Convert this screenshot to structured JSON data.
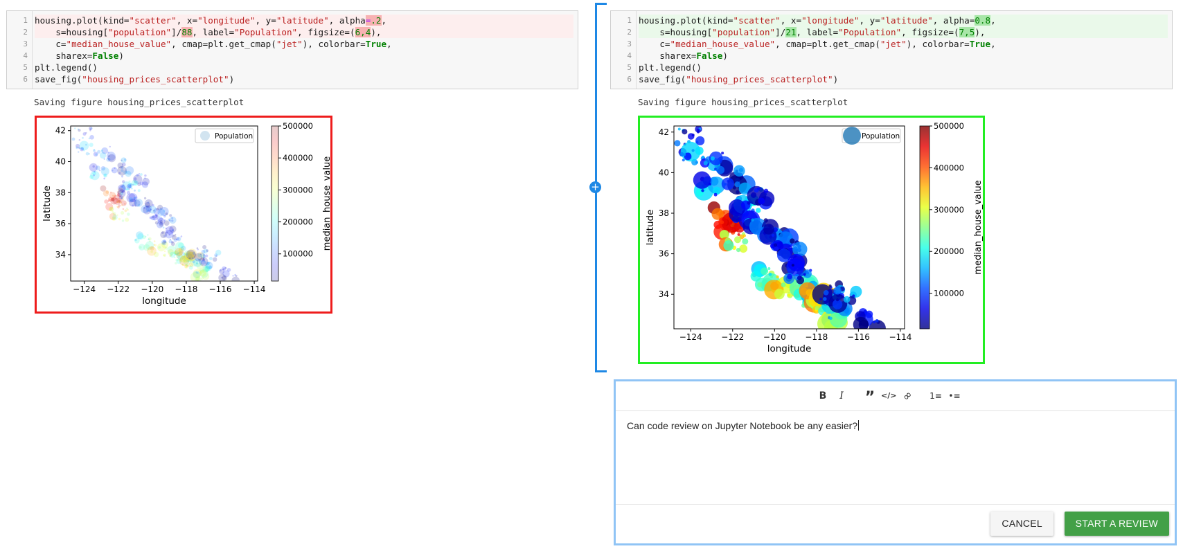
{
  "left_cell": {
    "code_lines": [
      {
        "n": "1",
        "tokens": [
          [
            "",
            "housing.plot(kind="
          ],
          [
            "str",
            "\"scatter\""
          ],
          [
            "",
            ", x="
          ],
          [
            "str",
            "\"longitude\""
          ],
          [
            "",
            ", y="
          ],
          [
            "str",
            "\"latitude\""
          ],
          [
            "",
            ", alpha"
          ],
          [
            "op-del",
            "="
          ],
          [
            "num-del",
            ".2"
          ],
          [
            "",
            ","
          ]
        ]
      },
      {
        "n": "2",
        "tokens": [
          [
            "",
            "    s=housing["
          ],
          [
            "str",
            "\"population\""
          ],
          [
            "",
            "]/"
          ],
          [
            "num-del",
            "88"
          ],
          [
            "",
            ", label="
          ],
          [
            "str",
            "\"Population\""
          ],
          [
            "",
            ", figsize=("
          ],
          [
            "num-del",
            "6,4"
          ],
          [
            "",
            "),"
          ]
        ]
      },
      {
        "n": "3",
        "tokens": [
          [
            "",
            "    c="
          ],
          [
            "str",
            "\"median_house_value\""
          ],
          [
            "",
            ", cmap=plt.get_cmap("
          ],
          [
            "str",
            "\"jet\""
          ],
          [
            "",
            "), colorbar="
          ],
          [
            "kw",
            "True"
          ],
          [
            "",
            ","
          ]
        ]
      },
      {
        "n": "4",
        "tokens": [
          [
            "",
            "    sharex="
          ],
          [
            "kw",
            "False"
          ],
          [
            "",
            ")"
          ]
        ]
      },
      {
        "n": "5",
        "tokens": [
          [
            "",
            "plt.legend()"
          ]
        ]
      },
      {
        "n": "6",
        "tokens": [
          [
            "",
            "save_fig("
          ],
          [
            "str",
            "\"housing_prices_scatterplot\""
          ],
          [
            "",
            ")"
          ]
        ]
      }
    ],
    "output_text": "Saving figure housing_prices_scatterplot"
  },
  "right_cell": {
    "code_lines": [
      {
        "n": "1",
        "tokens": [
          [
            "",
            "housing.plot(kind="
          ],
          [
            "str",
            "\"scatter\""
          ],
          [
            "",
            ", x="
          ],
          [
            "str",
            "\"longitude\""
          ],
          [
            "",
            ", y="
          ],
          [
            "str",
            "\"latitude\""
          ],
          [
            "",
            ", alpha="
          ],
          [
            "num-add",
            "0.8"
          ],
          [
            "",
            ","
          ]
        ]
      },
      {
        "n": "2",
        "tokens": [
          [
            "",
            "    s=housing["
          ],
          [
            "str",
            "\"population\""
          ],
          [
            "",
            "]/"
          ],
          [
            "num-add",
            "21"
          ],
          [
            "",
            ", label="
          ],
          [
            "str",
            "\"Population\""
          ],
          [
            "",
            ", figsize=("
          ],
          [
            "num-add",
            "7,5"
          ],
          [
            "",
            "),"
          ]
        ]
      },
      {
        "n": "3",
        "tokens": [
          [
            "",
            "    c="
          ],
          [
            "str",
            "\"median_house_value\""
          ],
          [
            "",
            ", cmap=plt.get_cmap("
          ],
          [
            "str",
            "\"jet\""
          ],
          [
            "",
            "), colorbar="
          ],
          [
            "kw",
            "True"
          ],
          [
            "",
            ","
          ]
        ]
      },
      {
        "n": "4",
        "tokens": [
          [
            "",
            "    sharex="
          ],
          [
            "kw",
            "False"
          ],
          [
            "",
            ")"
          ]
        ]
      },
      {
        "n": "5",
        "tokens": [
          [
            "",
            "plt.legend()"
          ]
        ]
      },
      {
        "n": "6",
        "tokens": [
          [
            "",
            "save_fig("
          ],
          [
            "str",
            "\"housing_prices_scatterplot\""
          ],
          [
            "",
            ")"
          ]
        ]
      }
    ],
    "output_text": "Saving figure housing_prices_scatterplot"
  },
  "chart_data": [
    {
      "type": "scatter",
      "title": "",
      "xlabel": "longitude",
      "ylabel": "latitude",
      "xlim": [
        -124.8,
        -113.8
      ],
      "ylim": [
        32.3,
        42.3
      ],
      "xticks": [
        "-124",
        "-122",
        "-120",
        "-118",
        "-116",
        "-114"
      ],
      "yticks": [
        "34",
        "36",
        "38",
        "40",
        "42"
      ],
      "legend": {
        "label": "Population",
        "position": "top-right"
      },
      "colorbar": {
        "label": "median_house_value",
        "ticks": [
          "100000",
          "200000",
          "300000",
          "400000",
          "500000"
        ],
        "range": [
          15000,
          500001
        ],
        "cmap": "jet"
      },
      "alpha": 0.2,
      "point_scale": "population/88",
      "series": [
        {
          "name": "Population",
          "description_points": [
            [
              -124.1,
              41.8,
              0.15
            ],
            [
              -123.9,
              40.9,
              0.2
            ],
            [
              -123.2,
              39.4,
              0.25
            ],
            [
              -122.4,
              37.8,
              0.9
            ],
            [
              -122.2,
              37.5,
              0.85
            ],
            [
              -122.0,
              37.3,
              0.75
            ],
            [
              -121.9,
              36.6,
              0.6
            ],
            [
              -121.5,
              38.6,
              0.25
            ],
            [
              -121.3,
              38.0,
              0.2
            ],
            [
              -120.7,
              37.3,
              0.15
            ],
            [
              -120.0,
              36.7,
              0.12
            ],
            [
              -119.8,
              36.8,
              0.15
            ],
            [
              -119.0,
              35.4,
              0.12
            ],
            [
              -120.6,
              34.9,
              0.45
            ],
            [
              -119.7,
              34.4,
              0.65
            ],
            [
              -118.5,
              34.2,
              0.55
            ],
            [
              -118.3,
              34.0,
              0.45
            ],
            [
              -118.2,
              33.8,
              0.55
            ],
            [
              -117.9,
              33.7,
              0.6
            ],
            [
              -117.7,
              33.6,
              0.55
            ],
            [
              -117.2,
              32.8,
              0.5
            ],
            [
              -117.1,
              33.2,
              0.3
            ],
            [
              -117.3,
              34.1,
              0.15
            ],
            [
              -116.5,
              33.8,
              0.15
            ],
            [
              -115.5,
              32.8,
              0.08
            ],
            [
              -122.9,
              40.6,
              0.15
            ],
            [
              -121.8,
              39.7,
              0.12
            ],
            [
              -120.9,
              38.8,
              0.2
            ],
            [
              -119.3,
              36.3,
              0.1
            ],
            [
              -118.8,
              35.1,
              0.1
            ]
          ]
        }
      ]
    },
    {
      "type": "scatter",
      "title": "",
      "xlabel": "longitude",
      "ylabel": "latitude",
      "xlim": [
        -124.8,
        -113.8
      ],
      "ylim": [
        32.3,
        42.3
      ],
      "xticks": [
        "-124",
        "-122",
        "-120",
        "-118",
        "-116",
        "-114"
      ],
      "yticks": [
        "34",
        "36",
        "38",
        "40",
        "42"
      ],
      "legend": {
        "label": "Population",
        "position": "top-right"
      },
      "colorbar": {
        "label": "median_house_value",
        "ticks": [
          "100000",
          "200000",
          "300000",
          "400000",
          "500000"
        ],
        "range": [
          15000,
          500001
        ],
        "cmap": "jet"
      },
      "alpha": 0.8,
      "point_scale": "population/21",
      "series": [
        {
          "name": "Population",
          "description_points": [
            [
              -124.1,
              41.8,
              0.15
            ],
            [
              -123.9,
              40.9,
              0.2
            ],
            [
              -123.2,
              39.4,
              0.25
            ],
            [
              -122.4,
              37.8,
              0.9
            ],
            [
              -122.2,
              37.5,
              0.85
            ],
            [
              -122.0,
              37.3,
              0.75
            ],
            [
              -121.9,
              36.6,
              0.6
            ],
            [
              -121.5,
              38.6,
              0.25
            ],
            [
              -121.3,
              38.0,
              0.2
            ],
            [
              -120.7,
              37.3,
              0.15
            ],
            [
              -120.0,
              36.7,
              0.12
            ],
            [
              -119.8,
              36.8,
              0.15
            ],
            [
              -119.0,
              35.4,
              0.12
            ],
            [
              -120.6,
              34.9,
              0.45
            ],
            [
              -119.7,
              34.4,
              0.65
            ],
            [
              -118.5,
              34.2,
              0.55
            ],
            [
              -118.3,
              34.0,
              0.45
            ],
            [
              -118.2,
              33.8,
              0.55
            ],
            [
              -117.9,
              33.7,
              0.6
            ],
            [
              -117.7,
              33.6,
              0.55
            ],
            [
              -117.2,
              32.8,
              0.5
            ],
            [
              -117.1,
              33.2,
              0.3
            ],
            [
              -117.3,
              34.1,
              0.15
            ],
            [
              -116.5,
              33.8,
              0.15
            ],
            [
              -115.5,
              32.8,
              0.08
            ],
            [
              -122.9,
              40.6,
              0.15
            ],
            [
              -121.8,
              39.7,
              0.12
            ],
            [
              -120.9,
              38.8,
              0.2
            ],
            [
              -119.3,
              36.3,
              0.1
            ],
            [
              -118.8,
              35.1,
              0.1
            ]
          ]
        }
      ]
    }
  ],
  "diff_colors": {
    "removed_border": "#ee1c1c",
    "added_border": "#22ee22",
    "bracket": "#1e88e5"
  },
  "review": {
    "toolbar_icons": [
      "bold-icon",
      "italic-icon",
      "quote-icon",
      "code-icon",
      "link-icon",
      "ordered-list-icon",
      "unordered-list-icon"
    ],
    "toolbar_glyphs": {
      "bold": "B",
      "italic": "I",
      "quote": "”",
      "code": "</>",
      "link": "∞",
      "ordered": "1≡",
      "unordered": "•≡"
    },
    "text": "Can code review on Jupyter Notebook be any easier?",
    "cancel_label": "CANCEL",
    "start_label": "START A REVIEW"
  }
}
